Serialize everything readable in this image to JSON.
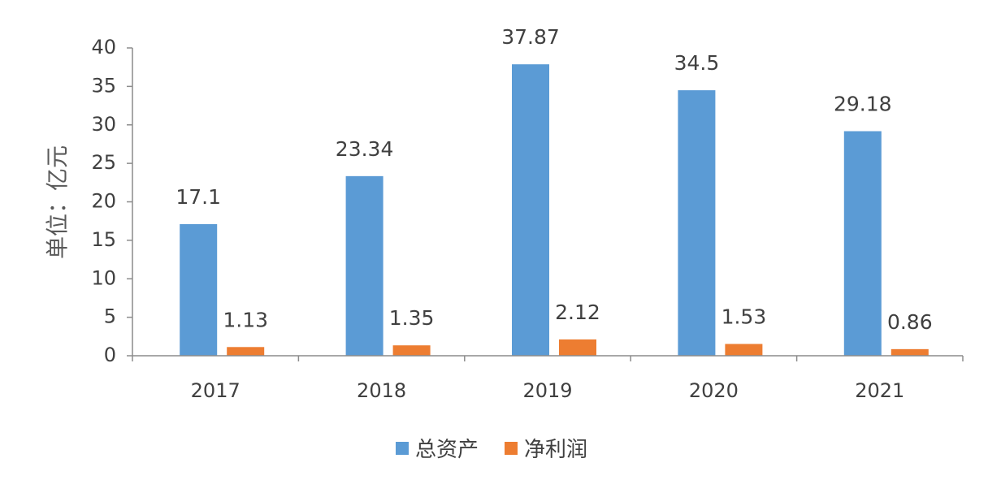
{
  "chart_data": {
    "type": "bar",
    "title": "",
    "xlabel": "",
    "ylabel": "单位：亿元",
    "ylim": [
      0,
      40
    ],
    "yticks": [
      0,
      5,
      10,
      15,
      20,
      25,
      30,
      35,
      40
    ],
    "categories": [
      "2017",
      "2018",
      "2019",
      "2020",
      "2021"
    ],
    "series": [
      {
        "name": "总资产",
        "color": "#5B9BD5",
        "values": [
          17.1,
          23.34,
          37.87,
          34.5,
          29.18
        ]
      },
      {
        "name": "净利润",
        "color": "#ED7D31",
        "values": [
          1.13,
          1.35,
          2.12,
          1.53,
          0.86
        ]
      }
    ],
    "data_labels": [
      [
        "17.1",
        "23.34",
        "37.87",
        "34.5",
        "29.18"
      ],
      [
        "1.13",
        "1.35",
        "2.12",
        "1.53",
        "0.86"
      ]
    ],
    "legend": {
      "position": "bottom",
      "entries": [
        "总资产",
        "净利润"
      ]
    },
    "grid": false
  }
}
